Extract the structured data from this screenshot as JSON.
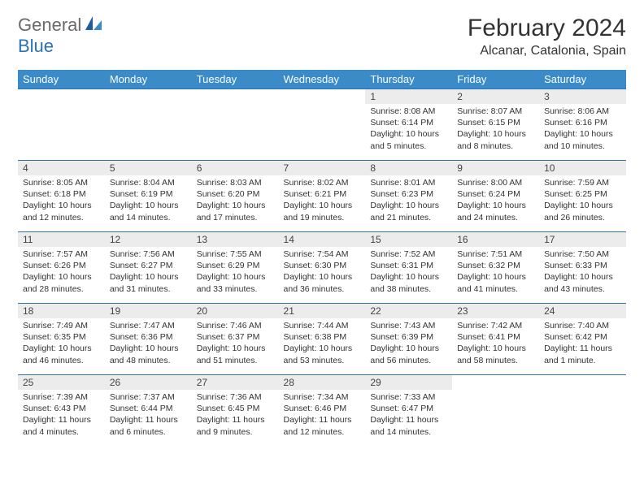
{
  "logo": {
    "gray": "General",
    "blue": "Blue"
  },
  "title": "February 2024",
  "location": "Alcanar, Catalonia, Spain",
  "colors": {
    "header_bg": "#3b8bc9",
    "header_text": "#ffffff",
    "daynum_bg": "#ececec",
    "row_border": "#2a71b8",
    "logo_gray": "#6a6a6a",
    "logo_blue": "#2a71b8"
  },
  "day_labels": [
    "Sunday",
    "Monday",
    "Tuesday",
    "Wednesday",
    "Thursday",
    "Friday",
    "Saturday"
  ],
  "weeks": [
    [
      null,
      null,
      null,
      null,
      {
        "num": "1",
        "sunrise": "8:08 AM",
        "sunset": "6:14 PM",
        "daylight": "10 hours and 5 minutes."
      },
      {
        "num": "2",
        "sunrise": "8:07 AM",
        "sunset": "6:15 PM",
        "daylight": "10 hours and 8 minutes."
      },
      {
        "num": "3",
        "sunrise": "8:06 AM",
        "sunset": "6:16 PM",
        "daylight": "10 hours and 10 minutes."
      }
    ],
    [
      {
        "num": "4",
        "sunrise": "8:05 AM",
        "sunset": "6:18 PM",
        "daylight": "10 hours and 12 minutes."
      },
      {
        "num": "5",
        "sunrise": "8:04 AM",
        "sunset": "6:19 PM",
        "daylight": "10 hours and 14 minutes."
      },
      {
        "num": "6",
        "sunrise": "8:03 AM",
        "sunset": "6:20 PM",
        "daylight": "10 hours and 17 minutes."
      },
      {
        "num": "7",
        "sunrise": "8:02 AM",
        "sunset": "6:21 PM",
        "daylight": "10 hours and 19 minutes."
      },
      {
        "num": "8",
        "sunrise": "8:01 AM",
        "sunset": "6:23 PM",
        "daylight": "10 hours and 21 minutes."
      },
      {
        "num": "9",
        "sunrise": "8:00 AM",
        "sunset": "6:24 PM",
        "daylight": "10 hours and 24 minutes."
      },
      {
        "num": "10",
        "sunrise": "7:59 AM",
        "sunset": "6:25 PM",
        "daylight": "10 hours and 26 minutes."
      }
    ],
    [
      {
        "num": "11",
        "sunrise": "7:57 AM",
        "sunset": "6:26 PM",
        "daylight": "10 hours and 28 minutes."
      },
      {
        "num": "12",
        "sunrise": "7:56 AM",
        "sunset": "6:27 PM",
        "daylight": "10 hours and 31 minutes."
      },
      {
        "num": "13",
        "sunrise": "7:55 AM",
        "sunset": "6:29 PM",
        "daylight": "10 hours and 33 minutes."
      },
      {
        "num": "14",
        "sunrise": "7:54 AM",
        "sunset": "6:30 PM",
        "daylight": "10 hours and 36 minutes."
      },
      {
        "num": "15",
        "sunrise": "7:52 AM",
        "sunset": "6:31 PM",
        "daylight": "10 hours and 38 minutes."
      },
      {
        "num": "16",
        "sunrise": "7:51 AM",
        "sunset": "6:32 PM",
        "daylight": "10 hours and 41 minutes."
      },
      {
        "num": "17",
        "sunrise": "7:50 AM",
        "sunset": "6:33 PM",
        "daylight": "10 hours and 43 minutes."
      }
    ],
    [
      {
        "num": "18",
        "sunrise": "7:49 AM",
        "sunset": "6:35 PM",
        "daylight": "10 hours and 46 minutes."
      },
      {
        "num": "19",
        "sunrise": "7:47 AM",
        "sunset": "6:36 PM",
        "daylight": "10 hours and 48 minutes."
      },
      {
        "num": "20",
        "sunrise": "7:46 AM",
        "sunset": "6:37 PM",
        "daylight": "10 hours and 51 minutes."
      },
      {
        "num": "21",
        "sunrise": "7:44 AM",
        "sunset": "6:38 PM",
        "daylight": "10 hours and 53 minutes."
      },
      {
        "num": "22",
        "sunrise": "7:43 AM",
        "sunset": "6:39 PM",
        "daylight": "10 hours and 56 minutes."
      },
      {
        "num": "23",
        "sunrise": "7:42 AM",
        "sunset": "6:41 PM",
        "daylight": "10 hours and 58 minutes."
      },
      {
        "num": "24",
        "sunrise": "7:40 AM",
        "sunset": "6:42 PM",
        "daylight": "11 hours and 1 minute."
      }
    ],
    [
      {
        "num": "25",
        "sunrise": "7:39 AM",
        "sunset": "6:43 PM",
        "daylight": "11 hours and 4 minutes."
      },
      {
        "num": "26",
        "sunrise": "7:37 AM",
        "sunset": "6:44 PM",
        "daylight": "11 hours and 6 minutes."
      },
      {
        "num": "27",
        "sunrise": "7:36 AM",
        "sunset": "6:45 PM",
        "daylight": "11 hours and 9 minutes."
      },
      {
        "num": "28",
        "sunrise": "7:34 AM",
        "sunset": "6:46 PM",
        "daylight": "11 hours and 12 minutes."
      },
      {
        "num": "29",
        "sunrise": "7:33 AM",
        "sunset": "6:47 PM",
        "daylight": "11 hours and 14 minutes."
      },
      null,
      null
    ]
  ],
  "labels": {
    "sunrise": "Sunrise:",
    "sunset": "Sunset:",
    "daylight": "Daylight:"
  }
}
